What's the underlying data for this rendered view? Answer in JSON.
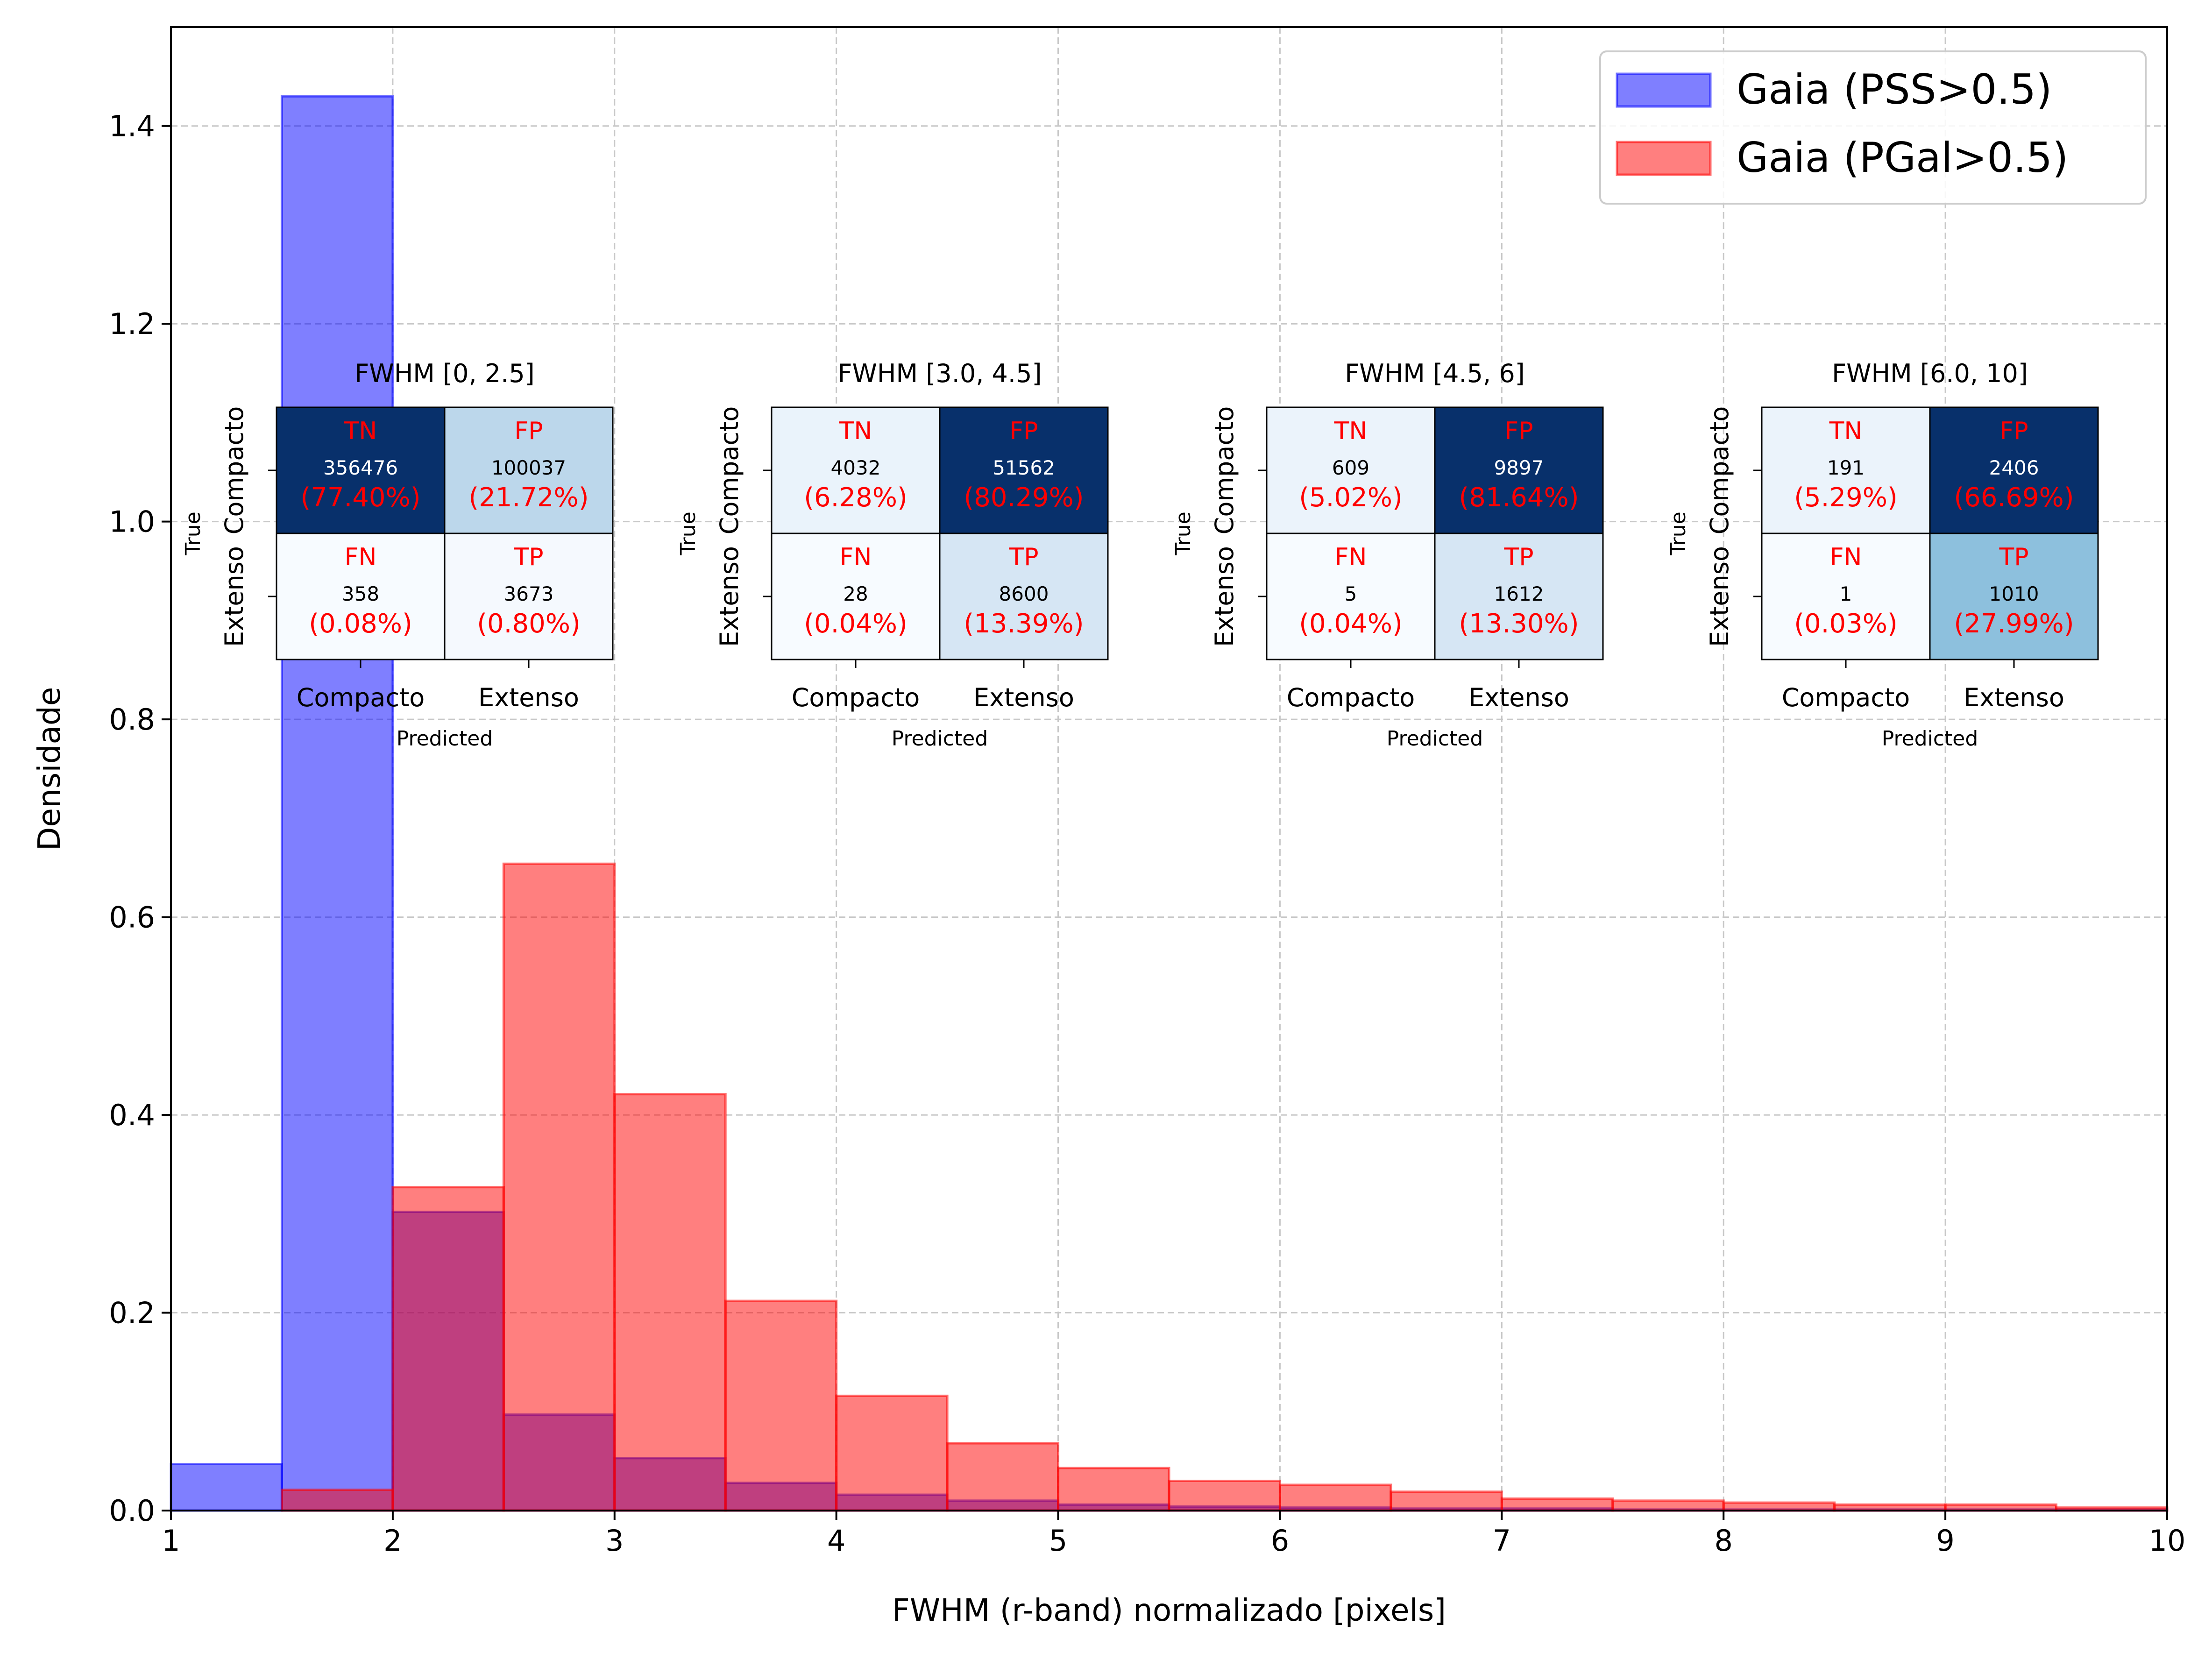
{
  "chart_data": {
    "type": "histogram",
    "xlabel": "FWHM (r-band) normalizado [pixels]",
    "ylabel": "Densidade",
    "xlim": [
      1,
      10
    ],
    "ylim": [
      0,
      1.5
    ],
    "xticks": [
      "1",
      "2",
      "3",
      "4",
      "5",
      "6",
      "7",
      "8",
      "9",
      "10"
    ],
    "yticks": [
      "0.0",
      "0.2",
      "0.4",
      "0.6",
      "0.8",
      "1.0",
      "1.2",
      "1.4"
    ],
    "grid": true,
    "legend_position": "top-right",
    "bin_edges": [
      1.0,
      1.5,
      2.0,
      2.5,
      3.0,
      3.5,
      4.0,
      4.5,
      5.0,
      5.5,
      6.0,
      6.5,
      7.0,
      7.5,
      8.0,
      8.5,
      9.0,
      9.5,
      10.0
    ],
    "series": [
      {
        "name": "Gaia (PSS>0.5)",
        "color": "#0000ff",
        "values": [
          0.047,
          1.43,
          0.302,
          0.097,
          0.053,
          0.028,
          0.016,
          0.01,
          0.006,
          0.004,
          0.003,
          0.002,
          0.002,
          0.001,
          0.001,
          0.001,
          0.001,
          0.001
        ]
      },
      {
        "name": "Gaia (PGal>0.5)",
        "color": "#ff0000",
        "values": [
          0.0,
          0.021,
          0.327,
          0.654,
          0.421,
          0.212,
          0.116,
          0.068,
          0.043,
          0.03,
          0.026,
          0.019,
          0.012,
          0.01,
          0.008,
          0.006,
          0.006,
          0.003
        ]
      }
    ],
    "inset_axis": {
      "xticklabels": [
        "Compacto",
        "Extenso"
      ],
      "yticklabels": [
        "Compacto",
        "Extenso"
      ],
      "xlabel": "Predicted",
      "ylabel": "True"
    },
    "confusion_matrices": [
      {
        "title": "FWHM [0, 2.5]",
        "cells": [
          {
            "label": "TN",
            "count": "356476",
            "percent": "(77.40%)",
            "fill": "#08306b",
            "text_color": "#ffffff"
          },
          {
            "label": "FP",
            "count": "100037",
            "percent": "(21.72%)",
            "fill": "#bcd7eb",
            "text_color": "#000000"
          },
          {
            "label": "FN",
            "count": "358",
            "percent": "(0.08%)",
            "fill": "#f7fbff",
            "text_color": "#000000"
          },
          {
            "label": "TP",
            "count": "3673",
            "percent": "(0.80%)",
            "fill": "#f5f9fe",
            "text_color": "#000000"
          }
        ]
      },
      {
        "title": "FWHM [3.0, 4.5]",
        "cells": [
          {
            "label": "TN",
            "count": "4032",
            "percent": "(6.28%)",
            "fill": "#eaf3fb",
            "text_color": "#000000"
          },
          {
            "label": "FP",
            "count": "51562",
            "percent": "(80.29%)",
            "fill": "#08306b",
            "text_color": "#ffffff"
          },
          {
            "label": "FN",
            "count": "28",
            "percent": "(0.04%)",
            "fill": "#f7fbff",
            "text_color": "#000000"
          },
          {
            "label": "TP",
            "count": "8600",
            "percent": "(13.39%)",
            "fill": "#d6e6f4",
            "text_color": "#000000"
          }
        ]
      },
      {
        "title": "FWHM [4.5, 6]",
        "cells": [
          {
            "label": "TN",
            "count": "609",
            "percent": "(5.02%)",
            "fill": "#ebf3fb",
            "text_color": "#000000"
          },
          {
            "label": "FP",
            "count": "9897",
            "percent": "(81.64%)",
            "fill": "#08306b",
            "text_color": "#ffffff"
          },
          {
            "label": "FN",
            "count": "5",
            "percent": "(0.04%)",
            "fill": "#f7fbff",
            "text_color": "#000000"
          },
          {
            "label": "TP",
            "count": "1612",
            "percent": "(13.30%)",
            "fill": "#d6e6f4",
            "text_color": "#000000"
          }
        ]
      },
      {
        "title": "FWHM [6.0, 10]",
        "cells": [
          {
            "label": "TN",
            "count": "191",
            "percent": "(5.29%)",
            "fill": "#ebf3fb",
            "text_color": "#000000"
          },
          {
            "label": "FP",
            "count": "2406",
            "percent": "(66.69%)",
            "fill": "#08306b",
            "text_color": "#ffffff"
          },
          {
            "label": "FN",
            "count": "1",
            "percent": "(0.03%)",
            "fill": "#f7fbff",
            "text_color": "#000000"
          },
          {
            "label": "TP",
            "count": "1010",
            "percent": "(27.99%)",
            "fill": "#8dc0dd",
            "text_color": "#000000"
          }
        ]
      }
    ]
  }
}
